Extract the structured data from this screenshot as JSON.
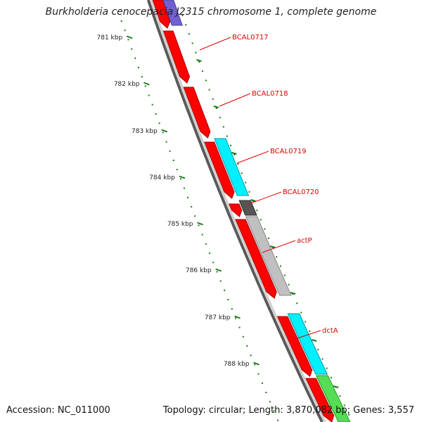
{
  "title": "Burkholderia cenocepacia J2315 chromosome 1, complete genome",
  "accession": "Accession: NC_011000",
  "summary": "Topology: circular; Length: 3,870,082 bp; Genes: 3,557",
  "colors": {
    "backbone_dark": "#5a5a5a",
    "backbone_light": "#cfcfcf",
    "forward_gene": "#ff0000",
    "ruler": "#1a7a1a",
    "label_line": "#e00000",
    "cyan": "#00f0ff",
    "gray": "#c0c0c0",
    "dark_gray": "#555555",
    "green": "#55dd55",
    "purple": "#7060d0"
  },
  "ruler": {
    "unit": "kbp",
    "labels": [
      "781 kbp",
      "782 kbp",
      "783 kbp",
      "784 kbp",
      "785 kbp",
      "786 kbp",
      "787 kbp",
      "788 kbp"
    ]
  },
  "genes": [
    {
      "label": "BCAL0717",
      "track": "red",
      "icon": "gene-arrow"
    },
    {
      "label": "BCAL0718",
      "track": "red",
      "icon": "gene-arrow"
    },
    {
      "label": "BCAL0719",
      "track": "cyan",
      "icon": "gene-block"
    },
    {
      "label": "BCAL0720",
      "track": "dark-gray",
      "icon": "gene-block"
    },
    {
      "label": "actP",
      "track": "gray",
      "icon": "gene-block"
    },
    {
      "label": "dctA",
      "track": "cyan",
      "icon": "gene-block"
    }
  ]
}
